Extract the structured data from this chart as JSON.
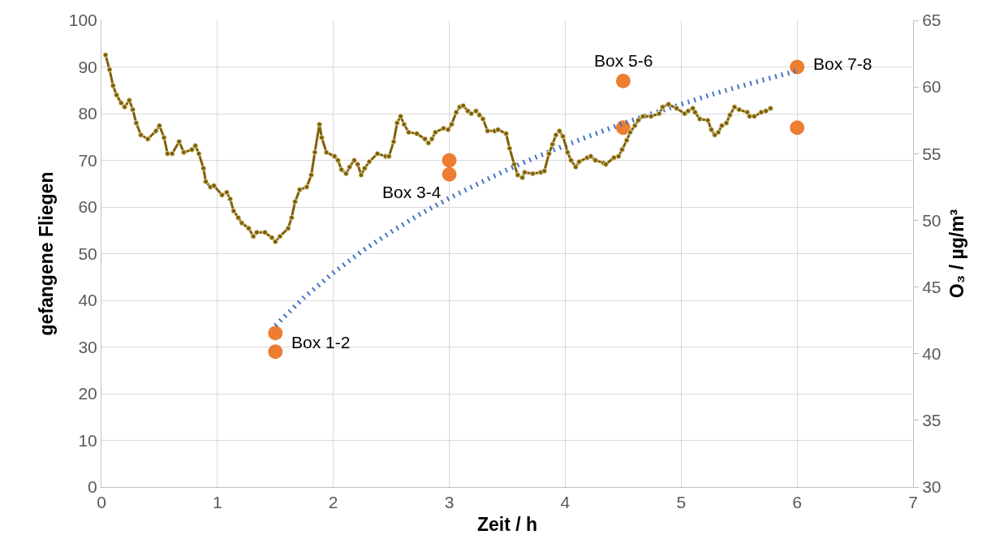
{
  "chart_data": {
    "type": "scatter",
    "xlabel": "Zeit / h",
    "ylabel": "gefangene Fliegen",
    "y2label": "O₃ / µg/m³",
    "xlim": [
      0,
      7
    ],
    "xticks": [
      0,
      1,
      2,
      3,
      4,
      5,
      6,
      7
    ],
    "ylim": [
      0,
      100
    ],
    "yticks": [
      0,
      10,
      20,
      30,
      40,
      50,
      60,
      70,
      80,
      90,
      100
    ],
    "y2lim": [
      30,
      65
    ],
    "y2ticks": [
      30,
      35,
      40,
      45,
      50,
      55,
      60,
      65
    ],
    "grid": true,
    "series": [
      {
        "type": "line",
        "axis": "y2",
        "color": "#7f6000",
        "marker": "circle",
        "line_style": "solid",
        "x": [
          0.035,
          0.07,
          0.1,
          0.13,
          0.17,
          0.2,
          0.24,
          0.27,
          0.3,
          0.34,
          0.4,
          0.47,
          0.5,
          0.54,
          0.57,
          0.61,
          0.67,
          0.71,
          0.78,
          0.81,
          0.84,
          0.88,
          0.9,
          0.94,
          0.97,
          1.04,
          1.08,
          1.11,
          1.14,
          1.18,
          1.21,
          1.27,
          1.31,
          1.34,
          1.41,
          1.47,
          1.5,
          1.54,
          1.61,
          1.64,
          1.67,
          1.71,
          1.77,
          1.81,
          1.84,
          1.88,
          1.9,
          1.94,
          2.01,
          2.04,
          2.07,
          2.11,
          2.14,
          2.18,
          2.21,
          2.24,
          2.27,
          2.31,
          2.38,
          2.45,
          2.48,
          2.52,
          2.55,
          2.58,
          2.61,
          2.65,
          2.72,
          2.79,
          2.82,
          2.85,
          2.88,
          2.95,
          2.99,
          3.02,
          3.06,
          3.09,
          3.12,
          3.16,
          3.19,
          3.23,
          3.26,
          3.29,
          3.33,
          3.39,
          3.42,
          3.49,
          3.52,
          3.56,
          3.59,
          3.63,
          3.65,
          3.72,
          3.79,
          3.82,
          3.86,
          3.89,
          3.92,
          3.95,
          3.98,
          4.02,
          4.05,
          4.09,
          4.12,
          4.19,
          4.22,
          4.26,
          4.33,
          4.35,
          4.42,
          4.46,
          4.49,
          4.53,
          4.56,
          4.6,
          4.63,
          4.67,
          4.74,
          4.81,
          4.84,
          4.89,
          4.96,
          5.03,
          5.06,
          5.1,
          5.12,
          5.16,
          5.23,
          5.26,
          5.29,
          5.32,
          5.35,
          5.39,
          5.42,
          5.46,
          5.5,
          5.57,
          5.59,
          5.63,
          5.69,
          5.73,
          5.77
        ],
        "values": [
          62.4,
          61.3,
          60.1,
          59.4,
          58.8,
          58.5,
          59.0,
          58.3,
          57.3,
          56.4,
          56.1,
          56.7,
          57.1,
          56.2,
          55.0,
          55.0,
          55.9,
          55.1,
          55.3,
          55.6,
          55.0,
          53.9,
          52.9,
          52.5,
          52.6,
          51.9,
          52.1,
          51.6,
          50.7,
          50.2,
          49.8,
          49.4,
          48.8,
          49.1,
          49.1,
          48.7,
          48.4,
          48.8,
          49.4,
          50.2,
          51.4,
          52.3,
          52.5,
          53.4,
          55.1,
          57.2,
          56.2,
          55.1,
          54.8,
          54.5,
          53.8,
          53.5,
          54.0,
          54.5,
          54.2,
          53.4,
          53.9,
          54.4,
          55.0,
          54.8,
          54.8,
          55.9,
          57.3,
          57.8,
          57.2,
          56.6,
          56.5,
          56.1,
          55.8,
          56.1,
          56.6,
          56.9,
          56.8,
          57.2,
          58.1,
          58.5,
          58.6,
          58.2,
          58.0,
          58.2,
          57.9,
          57.6,
          56.7,
          56.7,
          56.8,
          56.5,
          55.4,
          54.2,
          53.4,
          53.2,
          53.6,
          53.5,
          53.6,
          53.7,
          55.0,
          55.7,
          56.4,
          56.7,
          56.3,
          55.1,
          54.5,
          54.0,
          54.4,
          54.7,
          54.8,
          54.5,
          54.3,
          54.2,
          54.7,
          54.8,
          55.3,
          56.0,
          56.6,
          57.1,
          57.5,
          57.8,
          57.8,
          58.0,
          58.5,
          58.7,
          58.4,
          58.0,
          58.2,
          58.4,
          58.1,
          57.6,
          57.5,
          56.8,
          56.4,
          56.6,
          57.1,
          57.3,
          57.9,
          58.5,
          58.3,
          58.1,
          57.8,
          57.8,
          58.1,
          58.2,
          58.4
        ]
      },
      {
        "color": "#ed7d31",
        "marker": "circle",
        "x": [
          1.5,
          1.5,
          3,
          3,
          4.5,
          4.5,
          6,
          6
        ],
        "values": [
          33,
          29,
          70,
          67,
          87,
          77,
          90,
          77
        ]
      },
      {
        "type": "line",
        "color": "#4472c4",
        "marker": "none",
        "line_style": "dotted",
        "x": [
          1.5,
          1.75,
          2,
          2.25,
          2.5,
          2.75,
          3,
          3.25,
          3.5,
          3.75,
          4,
          4.25,
          4.5,
          4.75,
          5,
          5.25,
          5.5,
          5.75,
          6
        ],
        "values": [
          34.6,
          40.7,
          45.9,
          50.6,
          54.7,
          58.5,
          61.9,
          65.0,
          68.0,
          70.7,
          73.2,
          75.6,
          77.9,
          80.0,
          82.0,
          84.0,
          85.8,
          87.5,
          89.2
        ]
      }
    ],
    "annotations": [
      {
        "text": "Box 1-2",
        "x": 1.5,
        "y": 31
      },
      {
        "text": "Box 3-4",
        "x": 3,
        "y": 67
      },
      {
        "text": "Box 5-6",
        "x": 4.5,
        "y": 87
      },
      {
        "text": "Box 7-8",
        "x": 6,
        "y": 90
      }
    ]
  }
}
